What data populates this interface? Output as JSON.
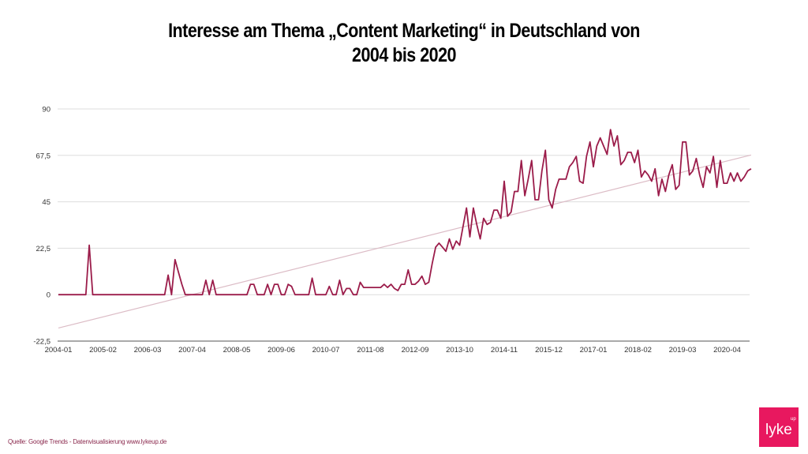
{
  "chart_data": {
    "type": "line",
    "title": "Interesse am Thema „Content Marketing“ in Deutschland von 2004 bis 2020",
    "title_lines": [
      "Interesse am Thema „Content Marketing“ in Deutschland von",
      "2004 bis 2020"
    ],
    "xlabel": "",
    "ylabel": "",
    "ylim": [
      -22.5,
      90
    ],
    "yticks": [
      90,
      67.5,
      45,
      22.5,
      0,
      -22.5
    ],
    "ytick_labels": [
      "90",
      "67,5",
      "45",
      "22,5",
      "0",
      "-22,5"
    ],
    "xtick_labels": [
      "2004-01",
      "2005-02",
      "2006-03",
      "2007-04",
      "2008-05",
      "2009-06",
      "2010-07",
      "2011-08",
      "2012-09",
      "2013-10",
      "2014-11",
      "2015-12",
      "2017-01",
      "2018-02",
      "2019-03",
      "2020-04"
    ],
    "x_frequency": "monthly",
    "x_range": [
      "2004-01",
      "2020-11"
    ],
    "grid": true,
    "trendline": "linear",
    "series": [
      {
        "values_by_year": {
          "2004": [
            0,
            0,
            0,
            0,
            0,
            0,
            0,
            0,
            0,
            24,
            0,
            0
          ],
          "2005": [
            0,
            0,
            0,
            0,
            0,
            0,
            0,
            0,
            0,
            0,
            0,
            0
          ],
          "2006": [
            0,
            0,
            0,
            0,
            0,
            0,
            0,
            0,
            9.5,
            0,
            17,
            11
          ],
          "2007": [
            5,
            0,
            0,
            0,
            0,
            0,
            0,
            7,
            0,
            7,
            0,
            0
          ],
          "2008": [
            0,
            0,
            0,
            0,
            0,
            0,
            0,
            0,
            5,
            5,
            0,
            0
          ],
          "2009": [
            0,
            5,
            0,
            5,
            5,
            0,
            0,
            5,
            4,
            0,
            0,
            0
          ],
          "2010": [
            0,
            0,
            8,
            0,
            0,
            0,
            0,
            4,
            0,
            0,
            7,
            0
          ],
          "2011": [
            3,
            3,
            0,
            0,
            6,
            3.5,
            3.5,
            3.5,
            3.5,
            3.5,
            3.5,
            5
          ],
          "2012": [
            3.5,
            5,
            3,
            2,
            5,
            5,
            12,
            5,
            5,
            6.5,
            9,
            5
          ],
          "2013": [
            6,
            15,
            23,
            25,
            23,
            21,
            27,
            22,
            26,
            24,
            33,
            42
          ],
          "2014": [
            28,
            42,
            34,
            27,
            37,
            34,
            35,
            41,
            41,
            37,
            55,
            38
          ],
          "2015": [
            40,
            50,
            50,
            65,
            48,
            56,
            65,
            46,
            46,
            60,
            70,
            46
          ],
          "2016": [
            42,
            51,
            56,
            56,
            56,
            62,
            64,
            67,
            55,
            54,
            67,
            74
          ],
          "2017": [
            62,
            72,
            76,
            72,
            68,
            80,
            72,
            77,
            63,
            65,
            69,
            69
          ],
          "2018": [
            64,
            70,
            57,
            60,
            58,
            55,
            61,
            48,
            56,
            50,
            58,
            63
          ],
          "2019": [
            51,
            53,
            74,
            74,
            58,
            60,
            66,
            58,
            52,
            62,
            59,
            67
          ],
          "2020": [
            52,
            65,
            54,
            54,
            59,
            55,
            59,
            55,
            57,
            60,
            61
          ]
        }
      }
    ],
    "colors": {
      "line": "#9b1c4a",
      "trend": "#dcbcc6",
      "grid": "#dddddd",
      "axis": "#555555"
    }
  },
  "footer": {
    "source": "Quelle: Google Trends - Datenvisualisierung www.lykeup.de"
  },
  "logo": {
    "text": "lyke",
    "superscript": "up",
    "color": "#e8185f"
  }
}
